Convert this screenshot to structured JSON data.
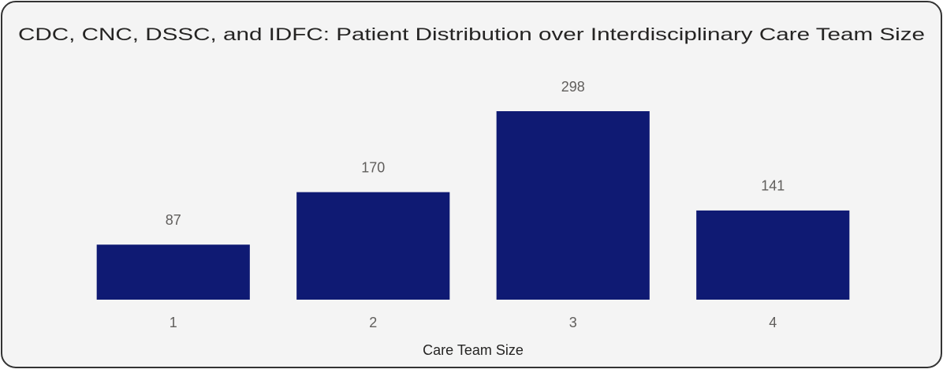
{
  "chart_data": {
    "type": "bar",
    "title": "CDC, CNC, DSSC, and IDFC: Patient Distribution over Interdisciplinary Care Team Size",
    "x_label": "Care Team Size",
    "categories": [
      "1",
      "2",
      "3",
      "4"
    ],
    "values": [
      87,
      170,
      298,
      141
    ],
    "color": "#0f1a73"
  }
}
